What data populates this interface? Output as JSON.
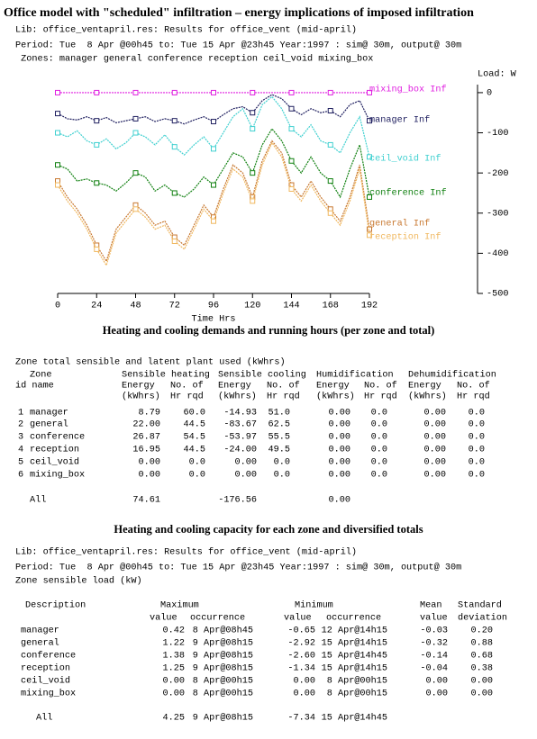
{
  "title": "Office model with \"scheduled\" infiltration – energy implications of imposed infiltration",
  "header_lines": [
    "Lib: office_ventapril.res: Results for office_vent (mid-april)",
    "Period: Tue  8 Apr @00h45 to: Tue 15 Apr @23h45 Year:1997 : sim@ 30m, output@ 30m",
    " Zones: manager general conference reception ceil_void mixing_box"
  ],
  "chart_data": {
    "type": "line",
    "x_label": "Time Hrs",
    "y_label": "Load: W",
    "x": [
      0,
      6,
      12,
      18,
      24,
      30,
      36,
      42,
      48,
      54,
      60,
      66,
      72,
      78,
      84,
      90,
      96,
      102,
      108,
      114,
      120,
      126,
      132,
      138,
      144,
      150,
      156,
      162,
      168,
      174,
      180,
      186,
      192
    ],
    "xlim": [
      0,
      192
    ],
    "xticks": [
      0,
      24,
      48,
      72,
      96,
      120,
      144,
      168,
      192
    ],
    "ylim": [
      -500,
      20
    ],
    "yticks": [
      0,
      -100,
      -200,
      -300,
      -400,
      -500
    ],
    "series": [
      {
        "name": "mixing_box Inf",
        "color": "#e020e0",
        "values": [
          0,
          0,
          0,
          0,
          0,
          0,
          0,
          0,
          0,
          0,
          0,
          0,
          0,
          0,
          0,
          0,
          0,
          0,
          0,
          0,
          0,
          0,
          0,
          0,
          0,
          0,
          0,
          0,
          0,
          0,
          0,
          0,
          0
        ]
      },
      {
        "name": "manager Inf",
        "color": "#202060",
        "values": [
          -52,
          -65,
          -68,
          -60,
          -70,
          -62,
          -75,
          -70,
          -65,
          -60,
          -72,
          -65,
          -70,
          -78,
          -68,
          -60,
          -72,
          -55,
          -40,
          -35,
          -50,
          -20,
          -5,
          -15,
          -40,
          -55,
          -40,
          -50,
          -45,
          -60,
          -30,
          -20,
          -70
        ]
      },
      {
        "name": "ceil_void Inf",
        "color": "#40d0d0",
        "values": [
          -100,
          -110,
          -95,
          -120,
          -130,
          -115,
          -140,
          -125,
          -100,
          -110,
          -130,
          -105,
          -135,
          -155,
          -130,
          -110,
          -140,
          -100,
          -60,
          -40,
          -90,
          -30,
          -10,
          -40,
          -90,
          -110,
          -80,
          -120,
          -130,
          -150,
          -100,
          -60,
          -160
        ]
      },
      {
        "name": "conference Inf",
        "color": "#108010",
        "values": [
          -180,
          -190,
          -220,
          -215,
          -225,
          -230,
          -245,
          -225,
          -200,
          -210,
          -245,
          -230,
          -250,
          -260,
          -240,
          -210,
          -230,
          -190,
          -150,
          -160,
          -200,
          -130,
          -90,
          -120,
          -170,
          -200,
          -160,
          -200,
          -220,
          -260,
          -190,
          -130,
          -260
        ]
      },
      {
        "name": "general Inf",
        "color": "#c87830",
        "values": [
          -220,
          -260,
          -290,
          -330,
          -380,
          -420,
          -340,
          -310,
          -280,
          -300,
          -330,
          -320,
          -360,
          -380,
          -330,
          -280,
          -310,
          -240,
          -180,
          -200,
          -260,
          -170,
          -120,
          -150,
          -230,
          -260,
          -220,
          -260,
          -290,
          -320,
          -260,
          -180,
          -340
        ]
      },
      {
        "name": "reception Inf",
        "color": "#f0b860",
        "values": [
          -230,
          -270,
          -300,
          -340,
          -390,
          -430,
          -350,
          -320,
          -290,
          -310,
          -340,
          -330,
          -370,
          -390,
          -340,
          -290,
          -320,
          -250,
          -190,
          -210,
          -270,
          -180,
          -125,
          -160,
          -240,
          -270,
          -230,
          -270,
          -300,
          -330,
          -270,
          -190,
          -355
        ]
      }
    ]
  },
  "section1": {
    "title": "Heating and cooling demands and running hours (per zone and total)",
    "caption": "Zone total sensible and latent plant used (kWhrs)",
    "headers": [
      [
        "Zone",
        "Sensible heating",
        "Sensible cooling",
        "Humidification",
        "Dehumidification"
      ],
      [
        "id name",
        "Energy",
        "No. of",
        "Energy",
        "No. of",
        "Energy",
        "No. of",
        "Energy",
        "No. of"
      ],
      [
        "(kWhrs)",
        "Hr rqd",
        "(kWhrs)",
        "Hr rqd",
        "(kWhrs)",
        "Hr rqd",
        "(kWhrs)",
        "Hr rqd"
      ]
    ],
    "rows": [
      [
        "1",
        "manager",
        "8.79",
        "60.0",
        "-14.93",
        "51.0",
        "0.00",
        "0.0",
        "0.00",
        "0.0"
      ],
      [
        "2",
        "general",
        "22.00",
        "44.5",
        "-83.67",
        "62.5",
        "0.00",
        "0.0",
        "0.00",
        "0.0"
      ],
      [
        "3",
        "conference",
        "26.87",
        "54.5",
        "-53.97",
        "55.5",
        "0.00",
        "0.0",
        "0.00",
        "0.0"
      ],
      [
        "4",
        "reception",
        "16.95",
        "44.5",
        "-24.00",
        "49.5",
        "0.00",
        "0.0",
        "0.00",
        "0.0"
      ],
      [
        "5",
        "ceil_void",
        "0.00",
        "0.0",
        "0.00",
        "0.0",
        "0.00",
        "0.0",
        "0.00",
        "0.0"
      ],
      [
        "6",
        "mixing_box",
        "0.00",
        "0.0",
        "0.00",
        "0.0",
        "0.00",
        "0.0",
        "0.00",
        "0.0"
      ]
    ],
    "total": [
      "All",
      "74.61",
      "-176.56",
      "0.00"
    ]
  },
  "section2": {
    "title": "Heating and cooling capacity for each zone and diversified totals",
    "lines": [
      "Lib: office_ventapril.res: Results for office_vent (mid-april)",
      "Period: Tue  8 Apr @00h45 to: Tue 15 Apr @23h45 Year:1997 : sim@ 30m, output@ 30m",
      "Zone sensible load (kW)"
    ],
    "headers": [
      [
        "Description",
        "Maximum",
        "Minimum",
        "Mean",
        "Standard"
      ],
      [
        "value",
        "occurrence",
        "value",
        "occurrence",
        "value",
        "deviation"
      ]
    ],
    "rows": [
      [
        "manager",
        "0.42",
        "8 Apr@08h45",
        "-0.65",
        "12 Apr@14h15",
        "-0.03",
        "0.20"
      ],
      [
        "general",
        "1.22",
        "9 Apr@08h15",
        "-2.92",
        "15 Apr@14h15",
        "-0.32",
        "0.88"
      ],
      [
        "conference",
        "1.38",
        "9 Apr@08h15",
        "-2.60",
        "15 Apr@14h45",
        "-0.14",
        "0.68"
      ],
      [
        "reception",
        "1.25",
        "9 Apr@08h15",
        "-1.34",
        "15 Apr@14h15",
        "-0.04",
        "0.38"
      ],
      [
        "ceil_void",
        "0.00",
        "8 Apr@00h15",
        "0.00",
        "8 Apr@00h15",
        "0.00",
        "0.00"
      ],
      [
        "mixing_box",
        "0.00",
        "8 Apr@00h15",
        "0.00",
        "8 Apr@00h15",
        "0.00",
        "0.00"
      ]
    ],
    "total": [
      "All",
      "4.25",
      "9 Apr@08h15",
      "-7.34",
      "15 Apr@14h45"
    ]
  }
}
